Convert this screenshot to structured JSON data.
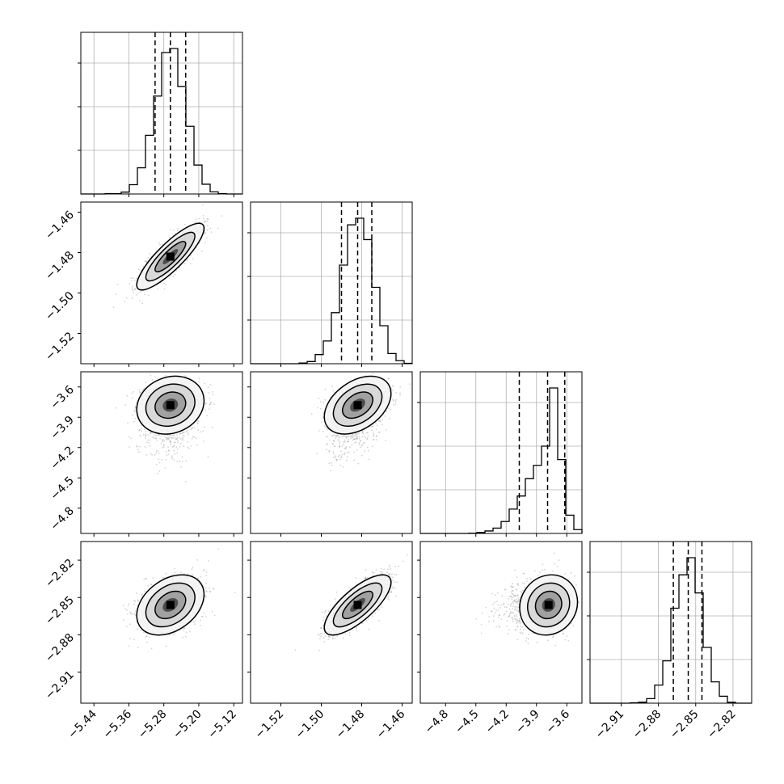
{
  "chart_data": {
    "type": "corner",
    "grid": true,
    "colors": {
      "hist": "#000000",
      "scatter": "#808080",
      "contour": "#000000",
      "grid": "#b0b0b0",
      "frame": "#000000"
    },
    "parameters": [
      {
        "range": [
          -5.47,
          -5.1
        ],
        "ticks": [
          -5.44,
          -5.36,
          -5.28,
          -5.2,
          -5.12
        ],
        "tick_labels": [
          "−5.44",
          "−5.36",
          "−5.28",
          "−5.20",
          "−5.12"
        ],
        "mean": -5.265,
        "std": 0.035,
        "quantiles": [
          -5.3,
          -5.265,
          -5.23
        ]
      },
      {
        "range": [
          -1.535,
          -1.455
        ],
        "ticks": [
          -1.52,
          -1.5,
          -1.48,
          -1.46
        ],
        "tick_labels": [
          "−1.52",
          "−1.50",
          "−1.48",
          "−1.46"
        ],
        "mean": -1.482,
        "std": 0.0075,
        "quantiles": [
          -1.49,
          -1.482,
          -1.475
        ]
      },
      {
        "range": [
          -5.05,
          -3.45
        ],
        "ticks": [
          -4.8,
          -4.5,
          -4.2,
          -3.9,
          -3.6
        ],
        "tick_labels": [
          "−4.8",
          "−4.5",
          "−4.2",
          "−3.9",
          "−3.6"
        ],
        "mean": -3.78,
        "std": 0.13,
        "skew": "left",
        "quantiles": [
          -4.07,
          -3.79,
          -3.62
        ]
      },
      {
        "range": [
          -2.935,
          -2.805
        ],
        "ticks": [
          -2.91,
          -2.88,
          -2.85,
          -2.82
        ],
        "tick_labels": [
          "−2.91",
          "−2.88",
          "−2.85",
          "−2.82"
        ],
        "mean": -2.856,
        "std": 0.011,
        "quantiles": [
          -2.868,
          -2.856,
          -2.845
        ]
      }
    ],
    "pairs": [
      {
        "row": 1,
        "col": 0,
        "correlation": 0.85
      },
      {
        "row": 2,
        "col": 0,
        "correlation": 0.15
      },
      {
        "row": 2,
        "col": 1,
        "correlation": 0.4
      },
      {
        "row": 3,
        "col": 0,
        "correlation": 0.35
      },
      {
        "row": 3,
        "col": 1,
        "correlation": 0.75
      },
      {
        "row": 3,
        "col": 2,
        "correlation": 0.1
      }
    ]
  }
}
